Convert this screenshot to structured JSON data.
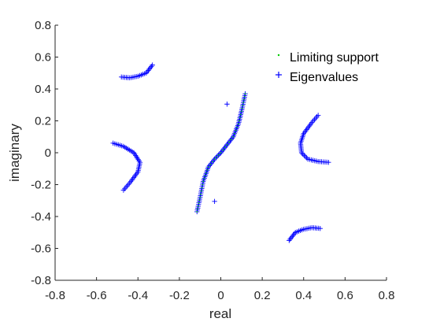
{
  "chart_data": {
    "type": "scatter",
    "title": "",
    "xlabel": "real",
    "ylabel": "imaginary",
    "xlim": [
      -0.8,
      0.8
    ],
    "ylim": [
      -0.8,
      0.8
    ],
    "xticks": [
      "-0.8",
      "-0.6",
      "-0.4",
      "-0.2",
      "0",
      "0.2",
      "0.4",
      "0.6",
      "0.8"
    ],
    "yticks": [
      "-0.8",
      "-0.6",
      "-0.4",
      "-0.2",
      "0",
      "0.2",
      "0.4",
      "0.6",
      "0.8"
    ],
    "grid": false,
    "legend_position": "top-right",
    "legend": [
      "Limiting support",
      "Eigenvalues"
    ],
    "series": [
      {
        "name": "Limiting support",
        "marker": "dot",
        "color": "#00cc00",
        "curves": [
          [
            [
              -0.115,
              -0.37
            ],
            [
              -0.1,
              -0.28
            ],
            [
              -0.085,
              -0.18
            ],
            [
              -0.06,
              -0.09
            ],
            [
              -0.03,
              -0.04
            ],
            [
              0.0,
              0.0
            ],
            [
              0.03,
              0.05
            ],
            [
              0.06,
              0.1
            ],
            [
              0.085,
              0.18
            ],
            [
              0.1,
              0.26
            ],
            [
              0.118,
              0.37
            ]
          ]
        ]
      },
      {
        "name": "Eigenvalues",
        "marker": "plus",
        "color": "#0000ff",
        "curves": [
          [
            [
              -0.115,
              -0.37
            ],
            [
              -0.1,
              -0.28
            ],
            [
              -0.085,
              -0.18
            ],
            [
              -0.06,
              -0.09
            ],
            [
              -0.03,
              -0.04
            ],
            [
              0.0,
              0.0
            ],
            [
              0.03,
              0.05
            ],
            [
              0.06,
              0.1
            ],
            [
              0.085,
              0.18
            ],
            [
              0.1,
              0.26
            ],
            [
              0.118,
              0.37
            ]
          ],
          [
            [
              -0.48,
              0.475
            ],
            [
              -0.44,
              0.47
            ],
            [
              -0.4,
              0.48
            ],
            [
              -0.36,
              0.5
            ],
            [
              -0.33,
              0.55
            ]
          ],
          [
            [
              0.33,
              -0.55
            ],
            [
              0.36,
              -0.5
            ],
            [
              0.4,
              -0.48
            ],
            [
              0.44,
              -0.47
            ],
            [
              0.48,
              -0.475
            ]
          ],
          [
            [
              -0.52,
              0.06
            ],
            [
              -0.47,
              0.04
            ],
            [
              -0.42,
              0.0
            ],
            [
              -0.39,
              -0.06
            ],
            [
              -0.4,
              -0.12
            ],
            [
              -0.44,
              -0.19
            ],
            [
              -0.47,
              -0.235
            ]
          ],
          [
            [
              0.47,
              0.235
            ],
            [
              0.44,
              0.19
            ],
            [
              0.4,
              0.12
            ],
            [
              0.385,
              0.06
            ],
            [
              0.39,
              0.0
            ],
            [
              0.42,
              -0.04
            ],
            [
              0.47,
              -0.055
            ],
            [
              0.52,
              -0.06
            ]
          ]
        ],
        "isolated": [
          [
            0.03,
            0.305
          ],
          [
            -0.03,
            -0.305
          ]
        ]
      }
    ]
  }
}
